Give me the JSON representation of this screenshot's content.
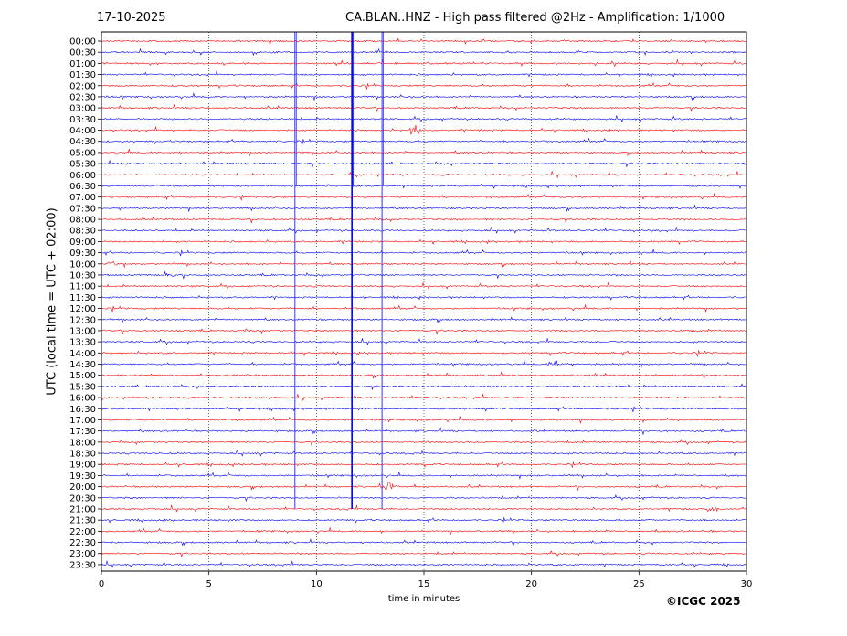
{
  "header": {
    "date": "17-10-2025",
    "title": "CA.BLAN..HNZ - High pass filtered @2Hz - Amplification: 1/1000"
  },
  "footer": {
    "copyright": "©ICGC 2025"
  },
  "colors": {
    "trace_red": "#ff0000",
    "trace_blue": "#0000ff",
    "axis": "#000000",
    "grid": "#000000"
  },
  "chart_data": {
    "type": "line",
    "subtype": "helicorder",
    "title": "CA.BLAN..HNZ - High pass filtered @2Hz - Amplification: 1/1000",
    "xlabel": "time in minutes",
    "ylabel": "UTC (local time = UTC + 02:00)",
    "xlim": [
      0,
      30
    ],
    "xticks": [
      0,
      5,
      10,
      15,
      20,
      25,
      30
    ],
    "vertical_gridlines_at_minutes": [
      5,
      10,
      15,
      20,
      25
    ],
    "grid": "dotted vertical",
    "row_labels": [
      "00:00",
      "00:30",
      "01:00",
      "01:30",
      "02:00",
      "02:30",
      "03:00",
      "03:30",
      "04:00",
      "04:30",
      "05:00",
      "05:30",
      "06:00",
      "06:30",
      "07:00",
      "07:30",
      "08:00",
      "08:30",
      "09:00",
      "09:30",
      "10:00",
      "10:30",
      "11:00",
      "11:30",
      "12:00",
      "12:30",
      "13:00",
      "13:30",
      "14:00",
      "14:30",
      "15:00",
      "15:30",
      "16:00",
      "16:30",
      "17:00",
      "17:30",
      "18:00",
      "18:30",
      "19:00",
      "19:30",
      "20:00",
      "20:30",
      "21:00",
      "21:30",
      "22:00",
      "22:30",
      "23:00",
      "23:30"
    ],
    "series_colors_alternating": [
      "#ff0000",
      "#0000ff"
    ],
    "persistent_spikes_minutes": [
      9.0,
      11.65,
      13.05
    ],
    "notable_events": [
      {
        "row": "04:00",
        "minute": 14.6
      },
      {
        "row": "10:00",
        "minute": 0.5
      },
      {
        "row": "10:30",
        "minute": 3.2
      },
      {
        "row": "14:30",
        "minute": 21.0
      },
      {
        "row": "20:00",
        "minute": 13.3
      },
      {
        "row": "21:00",
        "minute": 28.4
      }
    ]
  }
}
